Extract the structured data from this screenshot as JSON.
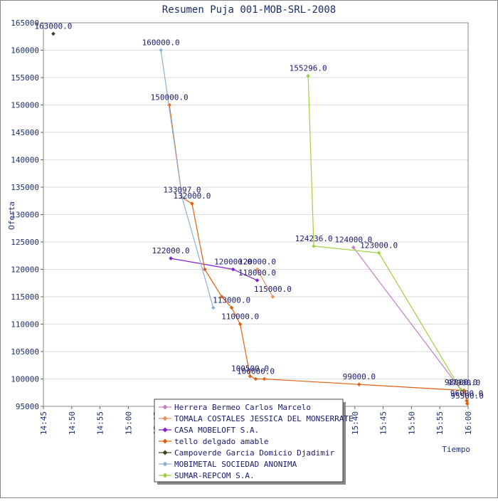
{
  "chart_data": {
    "type": "line",
    "title": "Resumen Puja 001-MOB-SRL-2008",
    "xlabel": "Tiempo",
    "ylabel": "Oferta",
    "x_unit": "time HH:MM",
    "xlim": [
      "14:45",
      "16:00"
    ],
    "ylim": [
      95000,
      165000
    ],
    "xticks": [
      "14:45",
      "14:50",
      "14:55",
      "15:00",
      "15:05",
      "15:10",
      "15:15",
      "15:20",
      "15:25",
      "15:30",
      "15:35",
      "15:40",
      "15:45",
      "15:50",
      "15:55",
      "16:00"
    ],
    "yticks": [
      95000,
      100000,
      105000,
      110000,
      115000,
      120000,
      125000,
      130000,
      135000,
      140000,
      145000,
      150000,
      155000,
      160000,
      165000
    ],
    "grid": true,
    "legend_position": "bottom",
    "series": [
      {
        "name": "Herrera Bermeo Carlos Marcelo",
        "color": "#c080c0",
        "points": [
          {
            "x": "15:39:45",
            "y": 124000,
            "label": "124000.0"
          },
          {
            "x": "15:58:45",
            "y": 98000,
            "label": "98000.0"
          }
        ]
      },
      {
        "name": "TOMALA COSTALES JESSICA DEL MONSERRATE",
        "color": "#e89060",
        "points": [
          {
            "x": "15:22:45",
            "y": 120000,
            "label": "120000.0"
          },
          {
            "x": "15:25:30",
            "y": 115000,
            "label": "115000.0"
          }
        ]
      },
      {
        "name": "CASA MOBELOFT S.A.",
        "color": "#8020d0",
        "points": [
          {
            "x": "15:07:30",
            "y": 122000,
            "label": "122000.0"
          },
          {
            "x": "15:18:30",
            "y": 120000,
            "label": "120000.0"
          },
          {
            "x": "15:22:45",
            "y": 118000,
            "label": "118000.0"
          }
        ]
      },
      {
        "name": "tello delgado amable",
        "color": "#e06010",
        "points": [
          {
            "x": "15:07:15",
            "y": 150000,
            "label": "150000.0"
          },
          {
            "x": "15:09:30",
            "y": 133097,
            "label": "133097.0"
          },
          {
            "x": "15:11:15",
            "y": 132000,
            "label": "132000.0"
          },
          {
            "x": "15:13:30",
            "y": 120000,
            "label": ""
          },
          {
            "x": "15:16:30",
            "y": 115000,
            "label": ""
          },
          {
            "x": "15:18:15",
            "y": 113000,
            "label": "113000.0"
          },
          {
            "x": "15:19:45",
            "y": 110000,
            "label": "110000.0"
          },
          {
            "x": "15:21:30",
            "y": 100500,
            "label": "100500.0"
          },
          {
            "x": "15:22:30",
            "y": 100000,
            "label": "100000.0"
          },
          {
            "x": "15:24:00",
            "y": 100000,
            "label": ""
          },
          {
            "x": "15:40:45",
            "y": 99000,
            "label": "99000.0"
          },
          {
            "x": "15:59:15",
            "y": 97900,
            "label": "97900.0"
          },
          {
            "x": "15:59:45",
            "y": 96000,
            "label": "96000.0"
          },
          {
            "x": "15:59:50",
            "y": 95500,
            "label": "95500.0"
          }
        ]
      },
      {
        "name": "Campoverde Garcia Domicio Djadimir",
        "color": "#404020",
        "points": [
          {
            "x": "14:46:45",
            "y": 163000,
            "label": "163000.0"
          }
        ]
      },
      {
        "name": "MOBIMETAL SOCIEDAD ANONIMA",
        "color": "#90b0d0",
        "points": [
          {
            "x": "15:05:45",
            "y": 160000,
            "label": "160000.0"
          },
          {
            "x": "15:09:30",
            "y": 133097,
            "label": ""
          },
          {
            "x": "15:15:00",
            "y": 113000,
            "label": ""
          }
        ]
      },
      {
        "name": "SUMAR-REPCOM S.A.",
        "color": "#a0d040",
        "points": [
          {
            "x": "15:31:45",
            "y": 155296,
            "label": "155296.0"
          },
          {
            "x": "15:32:45",
            "y": 124236,
            "label": "124236.0"
          },
          {
            "x": "15:44:15",
            "y": 123000,
            "label": "123000.0"
          },
          {
            "x": "15:58:45",
            "y": 98000,
            "label": ""
          }
        ]
      }
    ]
  }
}
